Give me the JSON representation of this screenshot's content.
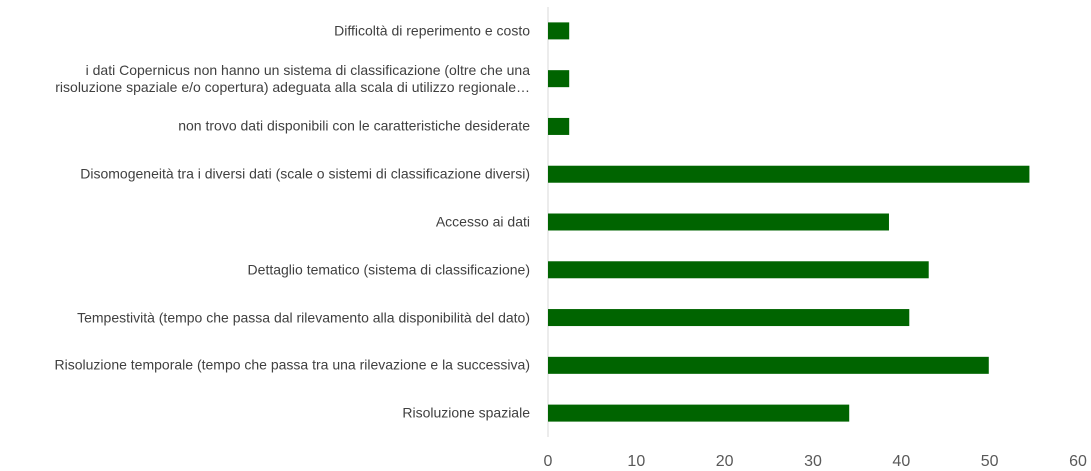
{
  "chart_data": {
    "type": "barh",
    "categories": [
      "Difficoltà di reperimento e costo",
      "i dati Copernicus non hanno un sistema di classificazione (oltre che una\nrisoluzione spaziale e/o copertura) adeguata alla scala di utilizzo regionale…",
      "non trovo dati disponibili con le caratteristiche desiderate",
      "Disomogeneità tra i diversi dati (scale o sistemi di classificazione diversi)",
      "Accesso ai dati",
      "Dettaglio tematico (sistema di classificazione)",
      "Tempestività (tempo che passa dal rilevamento alla disponibilità del dato)",
      "Risoluzione temporale (tempo che passa tra una rilevazione e la successiva)",
      "Risoluzione spaziale"
    ],
    "values": [
      2.4,
      2.4,
      2.4,
      54.5,
      38.6,
      43.1,
      40.9,
      49.9,
      34.1
    ],
    "color": "#006400",
    "xlim": [
      0,
      60
    ],
    "xticks": [
      0,
      10,
      20,
      30,
      40,
      50,
      60
    ]
  }
}
